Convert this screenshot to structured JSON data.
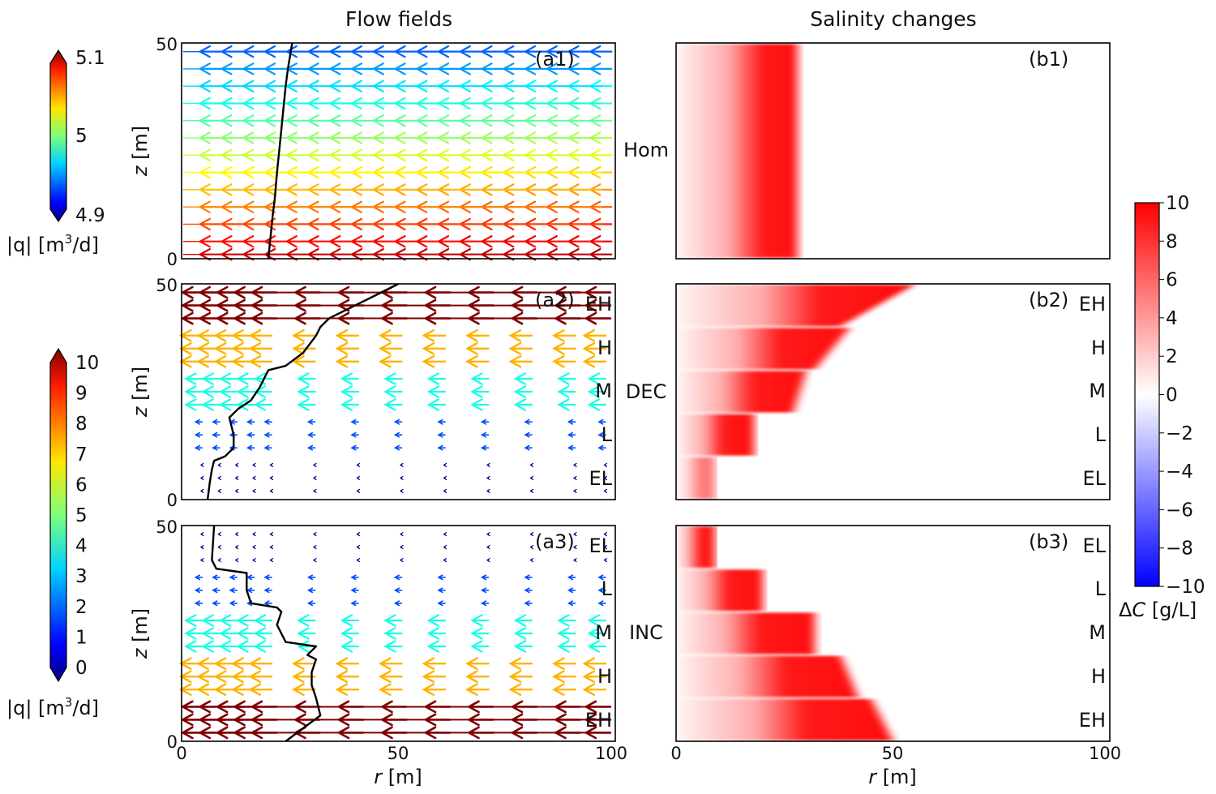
{
  "titles": {
    "left": "Flow fields",
    "right": "Salinity changes"
  },
  "row_labels": [
    "Hom",
    "DEC",
    "INC"
  ],
  "panel_labels": {
    "a1": "(a1)",
    "a2": "(a2)",
    "a3": "(a3)",
    "b1": "(b1)",
    "b2": "(b2)",
    "b3": "(b3)"
  },
  "layers_dec": [
    "EH",
    "H",
    "M",
    "L",
    "EL"
  ],
  "layers_inc": [
    "EL",
    "L",
    "M",
    "H",
    "EH"
  ],
  "colorbars": {
    "q_hom": {
      "ticks": [
        "5.1",
        "5",
        "4.9"
      ],
      "label_prefix": "|q|  [m",
      "label_exp": "3",
      "label_suffix": "/d]"
    },
    "q_het": {
      "ticks": [
        "10",
        "9",
        "8",
        "7",
        "6",
        "5",
        "4",
        "3",
        "2",
        "1",
        "0"
      ],
      "label_prefix": "|q|  [m",
      "label_exp": "3",
      "label_suffix": "/d]"
    },
    "dc": {
      "ticks": [
        "10",
        "8",
        "6",
        "4",
        "2",
        "0",
        "−2",
        "−4",
        "−6",
        "−8",
        "−10"
      ],
      "label_prefix": "Δ",
      "label_var": "C",
      "label_suffix": " [g/L]"
    }
  },
  "chart_data": [
    {
      "id": "a1",
      "type": "quiver",
      "title": "Flow fields",
      "row": "Hom",
      "xlabel": "",
      "ylabel": "z [m]",
      "xlim": [
        0,
        100
      ],
      "ylim": [
        0,
        50
      ],
      "yticks": [
        "0",
        "50"
      ],
      "colorbar": "q_hom",
      "color_range": [
        4.9,
        5.1
      ],
      "arrow_rows_z": [
        48,
        44,
        40,
        36,
        32,
        28,
        24,
        20,
        16,
        12,
        8,
        4,
        1
      ],
      "arrow_cols_r": [
        5,
        10,
        15,
        20,
        25,
        30,
        35,
        40,
        45,
        50,
        55,
        60,
        65,
        70,
        75,
        80,
        85,
        90,
        95
      ],
      "front_r": [
        20,
        20.5,
        21,
        21.5,
        22,
        22.5,
        23,
        23.5,
        24,
        24.5,
        25,
        25.5
      ],
      "front_z": [
        0,
        5,
        10,
        14,
        20,
        25,
        30,
        35,
        40,
        44,
        47,
        50
      ]
    },
    {
      "id": "a2",
      "type": "quiver",
      "row": "DEC",
      "ylabel": "z [m]",
      "xlim": [
        0,
        100
      ],
      "ylim": [
        0,
        50
      ],
      "yticks": [
        "0",
        "50"
      ],
      "colorbar": "q_het",
      "color_range": [
        0,
        10
      ],
      "layers": [
        {
          "name": "EH",
          "z_range": [
            40,
            50
          ],
          "q": 10
        },
        {
          "name": "H",
          "z_range": [
            30,
            40
          ],
          "q": 7
        },
        {
          "name": "M",
          "z_range": [
            20,
            30
          ],
          "q": 4
        },
        {
          "name": "L",
          "z_range": [
            10,
            20
          ],
          "q": 2
        },
        {
          "name": "EL",
          "z_range": [
            0,
            10
          ],
          "q": 0.3
        }
      ],
      "front_r": [
        6,
        6.5,
        7,
        7.5,
        10,
        12,
        12,
        11,
        12,
        13,
        16,
        18,
        20,
        24,
        28,
        31,
        32,
        34,
        38,
        44,
        50
      ],
      "front_z": [
        0,
        4,
        7,
        9,
        10,
        12,
        15,
        19,
        20,
        21,
        23,
        26,
        30,
        31,
        34,
        38,
        40,
        42,
        44,
        47,
        50
      ]
    },
    {
      "id": "a3",
      "type": "quiver",
      "row": "INC",
      "ylabel": "z [m]",
      "xlim": [
        0,
        100
      ],
      "ylim": [
        0,
        50
      ],
      "yticks": [
        "0",
        "50"
      ],
      "colorbar": "q_het",
      "color_range": [
        0,
        10
      ],
      "layers": [
        {
          "name": "EL",
          "z_range": [
            40,
            50
          ],
          "q": 0.3
        },
        {
          "name": "L",
          "z_range": [
            30,
            40
          ],
          "q": 2
        },
        {
          "name": "M",
          "z_range": [
            20,
            30
          ],
          "q": 4
        },
        {
          "name": "H",
          "z_range": [
            10,
            20
          ],
          "q": 7
        },
        {
          "name": "EH",
          "z_range": [
            0,
            10
          ],
          "q": 10
        }
      ],
      "front_r": [
        24,
        28,
        32,
        31,
        30,
        30,
        31,
        29,
        30,
        31,
        24,
        22,
        23,
        22,
        16,
        15,
        15,
        8,
        7,
        7.5
      ],
      "front_z": [
        0,
        3,
        6,
        10,
        13,
        16,
        19,
        20,
        21,
        22,
        23,
        27,
        30,
        31,
        32,
        35,
        39,
        40,
        42,
        50
      ]
    },
    {
      "id": "b1",
      "type": "heatmap",
      "title": "Salinity changes",
      "row": "Hom",
      "xlim": [
        0,
        100
      ],
      "ylim": [
        0,
        50
      ],
      "colorbar": "dc",
      "color_range": [
        -10,
        10
      ],
      "bands": [
        {
          "z_range": [
            0,
            50
          ],
          "r_front": 28,
          "r_inner_peak": 20,
          "peak": 9.5
        }
      ]
    },
    {
      "id": "b2",
      "type": "heatmap",
      "row": "DEC",
      "xlim": [
        0,
        100
      ],
      "ylim": [
        0,
        50
      ],
      "colorbar": "dc",
      "color_range": [
        -10,
        10
      ],
      "bands": [
        {
          "layer": "EH",
          "z_range": [
            40,
            50
          ],
          "r_front_bottom": 38,
          "r_front_top": 55,
          "peak": 9.5
        },
        {
          "layer": "H",
          "z_range": [
            30,
            40
          ],
          "r_front_bottom": 32,
          "r_front_top": 40,
          "peak": 9.5
        },
        {
          "layer": "M",
          "z_range": [
            20,
            30
          ],
          "r_front_bottom": 27,
          "r_front_top": 30,
          "peak": 9.5
        },
        {
          "layer": "L",
          "z_range": [
            10,
            20
          ],
          "r_front": 18,
          "peak": 9.5
        },
        {
          "layer": "EL",
          "z_range": [
            0,
            10
          ],
          "r_front": 9,
          "peak": 5.5
        }
      ]
    },
    {
      "id": "b3",
      "type": "heatmap",
      "row": "INC",
      "xlim": [
        0,
        100
      ],
      "ylim": [
        0,
        50
      ],
      "colorbar": "dc",
      "color_range": [
        -10,
        10
      ],
      "xlabel": "r [m]",
      "xticks": [
        "0",
        "50",
        "100"
      ],
      "bands": [
        {
          "layer": "EL",
          "z_range": [
            40,
            50
          ],
          "r_front": 9,
          "peak": 9.5
        },
        {
          "layer": "L",
          "z_range": [
            30,
            40
          ],
          "r_front": 20,
          "peak": 9.5
        },
        {
          "layer": "M",
          "z_range": [
            20,
            30
          ],
          "r_front": 32,
          "peak": 9.5
        },
        {
          "layer": "H",
          "z_range": [
            10,
            20
          ],
          "r_front_bottom": 42,
          "r_front_top": 38,
          "peak": 9.5
        },
        {
          "layer": "EH",
          "z_range": [
            0,
            10
          ],
          "r_front_bottom": 50,
          "r_front_top": 45,
          "peak": 9.5
        }
      ]
    }
  ],
  "axes": {
    "xlabel_var": "r",
    "xlabel_unit": " [m]",
    "ylabel_var": "z",
    "ylabel_unit": " [m]",
    "xticks": [
      "0",
      "50",
      "100"
    ],
    "yticks": [
      "0",
      "50"
    ]
  }
}
